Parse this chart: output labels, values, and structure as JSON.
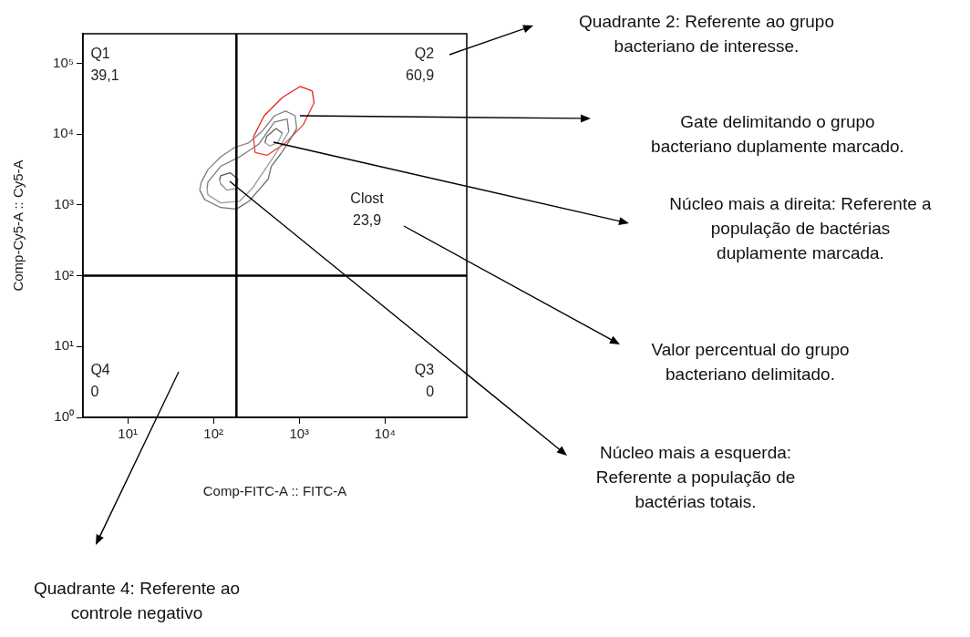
{
  "chart_data": {
    "type": "line",
    "xlabel": "Comp-FITC-A :: FITC-A",
    "ylabel": "Comp-Cy5-A :: Cy5-A",
    "log": "xy",
    "grid": false,
    "legend": false,
    "marker": "none",
    "line_style": "solid",
    "xlim": [
      3,
      90000
    ],
    "ylim": [
      1,
      262144
    ],
    "xticks": [
      {
        "value": 10,
        "label": "10¹"
      },
      {
        "value": 100,
        "label": "10²"
      },
      {
        "value": 1000,
        "label": "10³"
      },
      {
        "value": 10000,
        "label": "10⁴"
      }
    ],
    "yticks": [
      {
        "value": 1,
        "label": "10⁰"
      },
      {
        "value": 10,
        "label": "10¹"
      },
      {
        "value": 100,
        "label": "10²"
      },
      {
        "value": 1000,
        "label": "10³"
      },
      {
        "value": 10000,
        "label": "10⁴"
      },
      {
        "value": 100000,
        "label": "10⁵"
      }
    ],
    "ref_lines": [
      {
        "axis": "x",
        "value": 185,
        "color": "#000000"
      },
      {
        "axis": "y",
        "value": 100,
        "color": "#000000"
      }
    ],
    "series": [
      {
        "color": "#808080",
        "x": [
          69,
          72,
          86,
          121,
          177,
          260,
          366,
          514,
          693,
          896,
          934
        ],
        "values": [
          1620,
          2100,
          3160,
          4770,
          6500,
          7570,
          10900,
          18200,
          21200,
          18200,
          12000
        ]
      },
      {
        "color": "#6e6e6e",
        "x": [
          69,
          79,
          121,
          185,
          260,
          336,
          434,
          472,
          610,
          723,
          934
        ],
        "values": [
          1620,
          1190,
          920,
          875,
          1130,
          1620,
          2320,
          3510,
          5280,
          7200,
          12000
        ]
      },
      {
        "color": "#7a7a7a",
        "x": [
          84,
          86,
          121,
          201,
          336,
          514,
          723,
          755
        ],
        "values": [
          1700,
          2100,
          3510,
          4770,
          7200,
          14800,
          16400,
          10900
        ]
      },
      {
        "color": "#999999",
        "x": [
          84,
          86,
          121,
          201,
          283,
          398,
          560,
          755
        ],
        "values": [
          1700,
          1390,
          1070,
          1130,
          1710,
          3160,
          5860,
          10900
        ]
      },
      {
        "color": "#555555",
        "x": [
          118,
          121,
          156,
          193
        ],
        "values": [
          2250,
          2580,
          2850,
          2320
        ]
      },
      {
        "color": "#8c8c8c",
        "x": [
          118,
          121,
          143,
          185,
          193
        ],
        "values": [
          2250,
          1990,
          1620,
          1710,
          2320
        ]
      },
      {
        "color": "#5f5f5f",
        "x": [
          398,
          416,
          537,
          637
        ],
        "values": [
          7570,
          9300,
          12000,
          10300
        ]
      },
      {
        "color": "#a0a0a0",
        "x": [
          398,
          453,
          560,
          637
        ],
        "values": [
          7570,
          6840,
          7570,
          10300
        ]
      },
      {
        "color": "#e8201c",
        "x": [
          292,
          390,
          635,
          1030,
          1420,
          1490
        ],
        "values": [
          9140,
          18200,
          33000,
          47300,
          40700,
          27700
        ]
      },
      {
        "color": "#f03a30",
        "x": [
          292,
          306,
          420,
          682,
          1110,
          1490
        ],
        "values": [
          9140,
          5500,
          5020,
          7400,
          13500,
          27700
        ]
      }
    ],
    "annotations": [
      "Q1\n39,1",
      "Q2\n60,9",
      "Q4\n0",
      "Q3\n0",
      "Clost\n23,9",
      "Quadrante 2: Referente ao grupo\nbacteriano de interesse.",
      "Gate delimitando o grupo\nbacteriano duplamente marcado.",
      "Núcleo mais a direita: Referente a\npopulação de bactérias\nduplamente marcada.",
      "Valor percentual do grupo\nbacteriano delimitado.",
      "Núcleo mais a esquerda:\nReferente a população de\nbactérias totais.",
      "Quadrante 4: Referente ao\ncontrole negativo"
    ]
  }
}
